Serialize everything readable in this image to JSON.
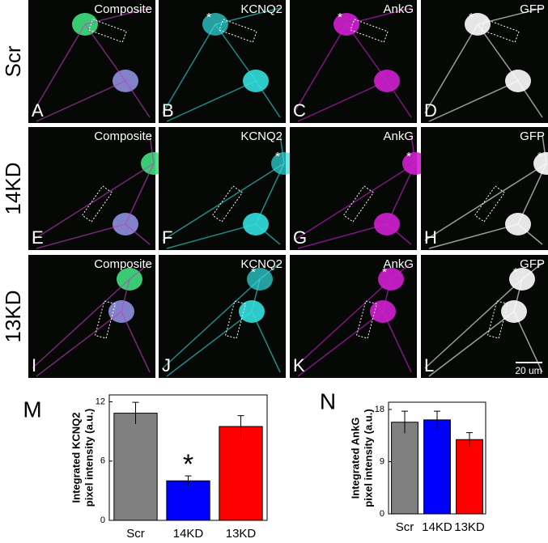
{
  "panels": {
    "rows": [
      "Scr",
      "14KD",
      "13KD"
    ],
    "channels": [
      "Composite",
      "KCNQ2",
      "AnkG",
      "GFP"
    ],
    "letters": [
      "A",
      "B",
      "C",
      "D",
      "E",
      "F",
      "G",
      "H",
      "I",
      "J",
      "K",
      "L"
    ],
    "marker": "*",
    "scale_bar": "20 um"
  },
  "chart_data": [
    {
      "type": "bar",
      "panel_label": "M",
      "ylabel": [
        "Integrated KCNQ2",
        "pixel intensity (a.u.)"
      ],
      "categories": [
        "Scr",
        "14KD",
        "13KD"
      ],
      "values": [
        10.85,
        4.0,
        9.5
      ],
      "errors": [
        1.1,
        0.5,
        1.1
      ],
      "colors": [
        "#808080",
        "#0000ff",
        "#ff0000"
      ],
      "ylim": [
        0,
        12.7
      ],
      "yticks": [
        0,
        6,
        12
      ],
      "annotation": "*"
    },
    {
      "type": "bar",
      "panel_label": "N",
      "ylabel": [
        "Integrated AnkG",
        "pixel intensity (a.u.)"
      ],
      "categories": [
        "Scr",
        "14KD",
        "13KD"
      ],
      "values": [
        15.8,
        16.2,
        12.8
      ],
      "errors": [
        1.9,
        1.5,
        1.2
      ],
      "colors": [
        "#808080",
        "#0000ff",
        "#ff0000"
      ],
      "ylim": [
        0,
        19.25
      ],
      "yticks": [
        0,
        9,
        18
      ]
    }
  ]
}
